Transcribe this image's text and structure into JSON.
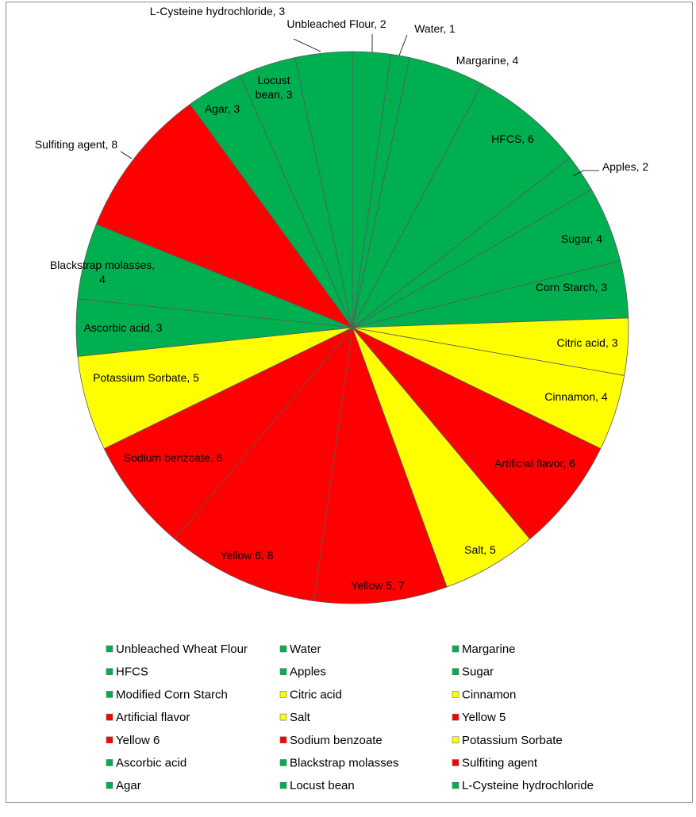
{
  "chart_data": {
    "type": "pie",
    "title": "",
    "colors": {
      "green": "#00b050",
      "yellow": "#ffff00",
      "red": "#ff0000"
    },
    "slices": [
      {
        "name": "Unbleached Wheat Flour",
        "value": 2,
        "color": "green",
        "label": "Unbleached  Flour, 2"
      },
      {
        "name": "Water",
        "value": 1,
        "color": "green",
        "label": "Water, 1"
      },
      {
        "name": "Margarine",
        "value": 4,
        "color": "green",
        "label": "Margarine, 4"
      },
      {
        "name": "HFCS",
        "value": 6,
        "color": "green",
        "label": "HFCS, 6"
      },
      {
        "name": "Apples",
        "value": 2,
        "color": "green",
        "label": "Apples, 2"
      },
      {
        "name": "Sugar",
        "value": 4,
        "color": "green",
        "label": "Sugar, 4"
      },
      {
        "name": "Modified Corn Starch",
        "value": 3,
        "color": "green",
        "label": "Corn Starch, 3"
      },
      {
        "name": "Citric acid",
        "value": 3,
        "color": "yellow",
        "label": "Citric acid, 3"
      },
      {
        "name": "Cinnamon",
        "value": 4,
        "color": "yellow",
        "label": "Cinnamon,  4"
      },
      {
        "name": "Artificial flavor",
        "value": 6,
        "color": "red",
        "label": "Artificial flavor,  6"
      },
      {
        "name": "Salt",
        "value": 5,
        "color": "yellow",
        "label": "Salt, 5"
      },
      {
        "name": "Yellow 5",
        "value": 7,
        "color": "red",
        "label": "Yellow  5, 7"
      },
      {
        "name": "Yellow 6",
        "value": 8,
        "color": "red",
        "label": "Yellow  6, 8"
      },
      {
        "name": "Sodium benzoate",
        "value": 6,
        "color": "red",
        "label": "Sodium benzoate, 6"
      },
      {
        "name": "Potassium Sorbate",
        "value": 5,
        "color": "yellow",
        "label": "Potassium Sorbate, 5"
      },
      {
        "name": "Ascorbic acid",
        "value": 3,
        "color": "green",
        "label": "Ascorbic acid, 3"
      },
      {
        "name": "Blackstrap molasses",
        "value": 4,
        "color": "green",
        "label": "Blackstrap molasses, 4"
      },
      {
        "name": "Sulfiting agent",
        "value": 8,
        "color": "red",
        "label": "Sulfiting agent, 8"
      },
      {
        "name": "Agar",
        "value": 3,
        "color": "green",
        "label": "Agar, 3"
      },
      {
        "name": "Locust bean",
        "value": 3,
        "color": "green",
        "label": "Locust bean, 3"
      },
      {
        "name": "L-Cysteine hydrochloride",
        "value": 3,
        "color": "green",
        "label": "L-Cysteine hydrochloride, 3"
      }
    ],
    "legend": {
      "position": "bottom",
      "columns": 3
    }
  }
}
